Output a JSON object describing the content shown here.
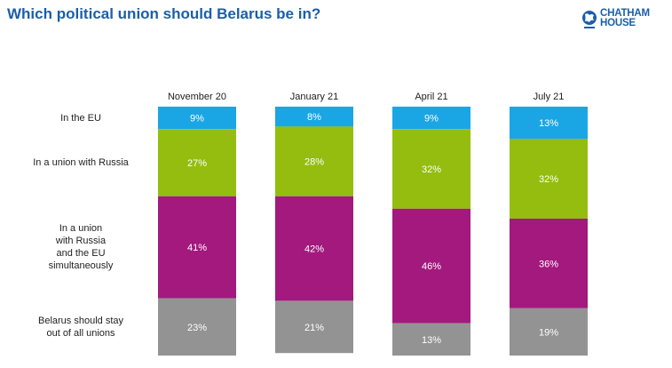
{
  "header": {
    "title": "Which political union should Belarus be in?",
    "logo_line1": "CHATHAM",
    "logo_line2": "HOUSE"
  },
  "colors": {
    "title": "#1a5fa8",
    "eu": "#1aa6e4",
    "russia": "#94bd0f",
    "both": "#a3197e",
    "none": "#939393"
  },
  "chart_data": {
    "type": "bar",
    "stacked": true,
    "title": "Which political union should Belarus be in?",
    "categories": [
      "November 20",
      "January 21",
      "April 21",
      "July 21"
    ],
    "series": [
      {
        "name": "In the EU",
        "labels": [
          "In the EU"
        ],
        "color": "#1aa6e4",
        "values": [
          9,
          8,
          9,
          13
        ]
      },
      {
        "name": "In a union with Russia",
        "labels": [
          "In a union with Russia"
        ],
        "color": "#94bd0f",
        "values": [
          27,
          28,
          32,
          32
        ]
      },
      {
        "name": "In a union with Russia and the EU simultaneously",
        "labels": [
          "In a union",
          "with Russia",
          "and the EU",
          "simultaneously"
        ],
        "color": "#a3197e",
        "values": [
          41,
          42,
          46,
          36
        ]
      },
      {
        "name": "Belarus should stay out of all unions",
        "labels": [
          "Belarus should stay",
          "out of all unions"
        ],
        "color": "#939393",
        "values": [
          23,
          21,
          13,
          19
        ]
      }
    ],
    "unit": "%",
    "ylim": [
      0,
      100
    ]
  }
}
